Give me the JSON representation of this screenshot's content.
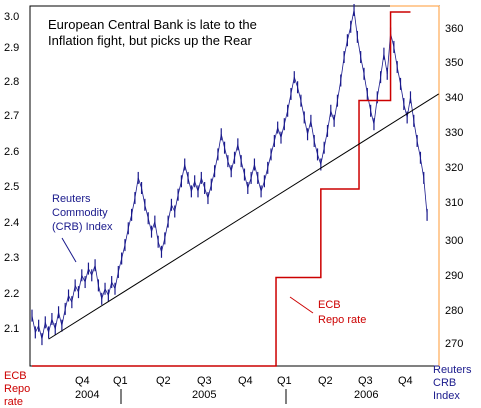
{
  "chart_data": {
    "type": "line",
    "title_lines": [
      "European Central Bank is late to the",
      "Inflation fight, but picks up the Rear"
    ],
    "left_axis": {
      "ticks": [
        "3.0",
        "2.9",
        "2.8",
        "2.7",
        "2.6",
        "2.5",
        "2.4",
        "2.3",
        "2.2",
        "2.1"
      ],
      "ylim": [
        2.0,
        3.0
      ]
    },
    "right_axis": {
      "ticks": [
        "360",
        "350",
        "340",
        "330",
        "320",
        "310",
        "300",
        "290",
        "280",
        "270"
      ],
      "ylim": [
        260,
        366
      ]
    },
    "x_axis": {
      "quarters": [
        "Q4",
        "Q1",
        "Q2",
        "Q3",
        "Q4",
        "Q1",
        "Q2",
        "Q3",
        "Q4"
      ],
      "years": [
        "2004",
        "2005",
        "2006"
      ]
    },
    "labels": {
      "left_corner": [
        "ECB",
        "Repo",
        "rate"
      ],
      "right_corner": [
        "Reuters",
        "CRB",
        "Index"
      ],
      "crb_annotation": [
        "Reuters",
        "Commodity",
        "(CRB) Index"
      ],
      "repo_annotation": [
        "ECB",
        "Repo rate"
      ]
    },
    "series": [
      {
        "axis": "left",
        "color": "#cc0000",
        "steps": [
          {
            "t": 0.0,
            "v": 2.0
          },
          {
            "t": 1.47,
            "v": 2.0
          },
          {
            "t": 1.47,
            "v": 2.25
          },
          {
            "t": 1.74,
            "v": 2.25
          },
          {
            "t": 1.74,
            "v": 2.5
          },
          {
            "t": 1.97,
            "v": 2.5
          },
          {
            "t": 1.97,
            "v": 2.75
          },
          {
            "t": 2.16,
            "v": 2.75
          },
          {
            "t": 2.16,
            "v": 3.0
          },
          {
            "t": 2.28,
            "v": 3.0
          }
        ]
      },
      {
        "axis": "right",
        "color": "#1a1a8c",
        "points": [
          {
            "t": 0.0,
            "v": 275
          },
          {
            "t": 0.02,
            "v": 270
          },
          {
            "t": 0.04,
            "v": 272
          },
          {
            "t": 0.06,
            "v": 268
          },
          {
            "t": 0.08,
            "v": 273
          },
          {
            "t": 0.1,
            "v": 270
          },
          {
            "t": 0.12,
            "v": 274
          },
          {
            "t": 0.14,
            "v": 271
          },
          {
            "t": 0.16,
            "v": 276
          },
          {
            "t": 0.18,
            "v": 272
          },
          {
            "t": 0.2,
            "v": 277
          },
          {
            "t": 0.22,
            "v": 281
          },
          {
            "t": 0.24,
            "v": 279
          },
          {
            "t": 0.26,
            "v": 284
          },
          {
            "t": 0.28,
            "v": 282
          },
          {
            "t": 0.3,
            "v": 287
          },
          {
            "t": 0.32,
            "v": 285
          },
          {
            "t": 0.34,
            "v": 289
          },
          {
            "t": 0.36,
            "v": 287
          },
          {
            "t": 0.38,
            "v": 290
          },
          {
            "t": 0.4,
            "v": 284
          },
          {
            "t": 0.42,
            "v": 280
          },
          {
            "t": 0.44,
            "v": 283
          },
          {
            "t": 0.46,
            "v": 281
          },
          {
            "t": 0.48,
            "v": 285
          },
          {
            "t": 0.5,
            "v": 283
          },
          {
            "t": 0.52,
            "v": 288
          },
          {
            "t": 0.54,
            "v": 292
          },
          {
            "t": 0.56,
            "v": 296
          },
          {
            "t": 0.58,
            "v": 301
          },
          {
            "t": 0.6,
            "v": 305
          },
          {
            "t": 0.62,
            "v": 310
          },
          {
            "t": 0.64,
            "v": 316
          },
          {
            "t": 0.66,
            "v": 313
          },
          {
            "t": 0.68,
            "v": 308
          },
          {
            "t": 0.7,
            "v": 304
          },
          {
            "t": 0.72,
            "v": 300
          },
          {
            "t": 0.74,
            "v": 303
          },
          {
            "t": 0.76,
            "v": 297
          },
          {
            "t": 0.78,
            "v": 294
          },
          {
            "t": 0.8,
            "v": 298
          },
          {
            "t": 0.82,
            "v": 303
          },
          {
            "t": 0.84,
            "v": 308
          },
          {
            "t": 0.86,
            "v": 306
          },
          {
            "t": 0.88,
            "v": 311
          },
          {
            "t": 0.9,
            "v": 315
          },
          {
            "t": 0.92,
            "v": 320
          },
          {
            "t": 0.94,
            "v": 316
          },
          {
            "t": 0.96,
            "v": 312
          },
          {
            "t": 0.98,
            "v": 315
          },
          {
            "t": 1.0,
            "v": 312
          },
          {
            "t": 1.02,
            "v": 316
          },
          {
            "t": 1.04,
            "v": 313
          },
          {
            "t": 1.06,
            "v": 310
          },
          {
            "t": 1.08,
            "v": 314
          },
          {
            "t": 1.1,
            "v": 318
          },
          {
            "t": 1.12,
            "v": 323
          },
          {
            "t": 1.14,
            "v": 329
          },
          {
            "t": 1.16,
            "v": 325
          },
          {
            "t": 1.18,
            "v": 321
          },
          {
            "t": 1.2,
            "v": 318
          },
          {
            "t": 1.22,
            "v": 322
          },
          {
            "t": 1.24,
            "v": 326
          },
          {
            "t": 1.26,
            "v": 321
          },
          {
            "t": 1.28,
            "v": 317
          },
          {
            "t": 1.3,
            "v": 313
          },
          {
            "t": 1.32,
            "v": 316
          },
          {
            "t": 1.34,
            "v": 320
          },
          {
            "t": 1.36,
            "v": 316
          },
          {
            "t": 1.38,
            "v": 312
          },
          {
            "t": 1.4,
            "v": 315
          },
          {
            "t": 1.42,
            "v": 319
          },
          {
            "t": 1.44,
            "v": 323
          },
          {
            "t": 1.46,
            "v": 327
          },
          {
            "t": 1.48,
            "v": 331
          },
          {
            "t": 1.5,
            "v": 328
          },
          {
            "t": 1.52,
            "v": 332
          },
          {
            "t": 1.54,
            "v": 336
          },
          {
            "t": 1.56,
            "v": 341
          },
          {
            "t": 1.58,
            "v": 346
          },
          {
            "t": 1.6,
            "v": 343
          },
          {
            "t": 1.62,
            "v": 339
          },
          {
            "t": 1.64,
            "v": 334
          },
          {
            "t": 1.66,
            "v": 329
          },
          {
            "t": 1.68,
            "v": 333
          },
          {
            "t": 1.7,
            "v": 327
          },
          {
            "t": 1.72,
            "v": 323
          },
          {
            "t": 1.74,
            "v": 320
          },
          {
            "t": 1.76,
            "v": 325
          },
          {
            "t": 1.78,
            "v": 330
          },
          {
            "t": 1.8,
            "v": 336
          },
          {
            "t": 1.82,
            "v": 333
          },
          {
            "t": 1.84,
            "v": 339
          },
          {
            "t": 1.86,
            "v": 345
          },
          {
            "t": 1.88,
            "v": 352
          },
          {
            "t": 1.9,
            "v": 357
          },
          {
            "t": 1.92,
            "v": 361
          },
          {
            "t": 1.94,
            "v": 366
          },
          {
            "t": 1.96,
            "v": 358
          },
          {
            "t": 1.98,
            "v": 352
          },
          {
            "t": 2.0,
            "v": 347
          },
          {
            "t": 2.02,
            "v": 341
          },
          {
            "t": 2.04,
            "v": 336
          },
          {
            "t": 2.06,
            "v": 332
          },
          {
            "t": 2.08,
            "v": 340
          },
          {
            "t": 2.1,
            "v": 346
          },
          {
            "t": 2.12,
            "v": 353
          },
          {
            "t": 2.14,
            "v": 347
          },
          {
            "t": 2.16,
            "v": 359
          },
          {
            "t": 2.18,
            "v": 355
          },
          {
            "t": 2.2,
            "v": 349
          },
          {
            "t": 2.22,
            "v": 344
          },
          {
            "t": 2.24,
            "v": 338
          },
          {
            "t": 2.26,
            "v": 334
          },
          {
            "t": 2.28,
            "v": 340
          },
          {
            "t": 2.3,
            "v": 333
          },
          {
            "t": 2.32,
            "v": 327
          },
          {
            "t": 2.34,
            "v": 322
          },
          {
            "t": 2.36,
            "v": 316
          },
          {
            "t": 2.38,
            "v": 305
          }
        ]
      }
    ],
    "trend_line": [
      {
        "t": 0.1,
        "v": 268
      },
      {
        "t": 2.45,
        "v": 341
      }
    ]
  }
}
